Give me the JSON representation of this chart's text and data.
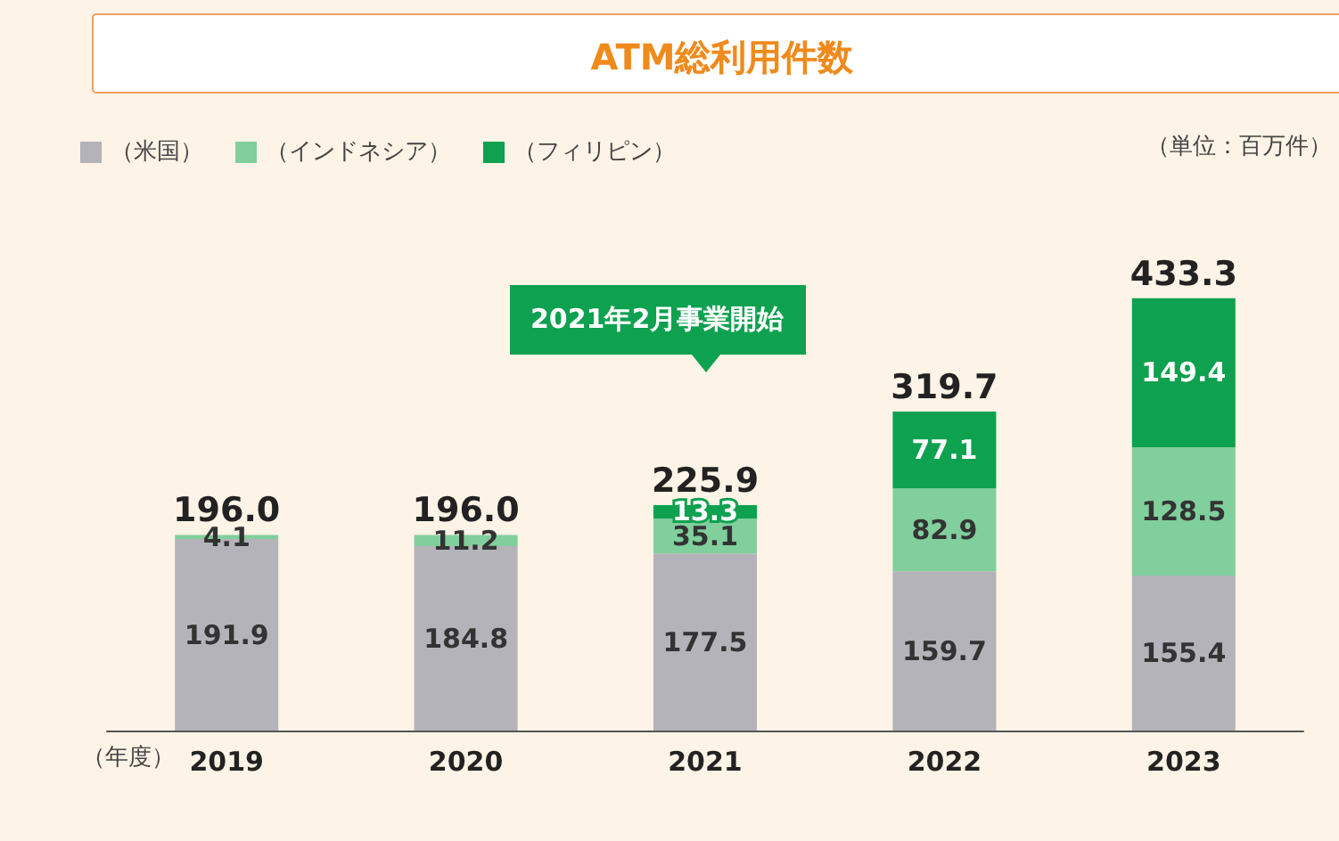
{
  "chart_data": {
    "type": "bar",
    "title": "ATM総利用件数",
    "xlabel": "（年度）",
    "categories": [
      "2019",
      "2020",
      "2021",
      "2022",
      "2023"
    ],
    "stacked": true,
    "data_labels": true,
    "legend": "top left",
    "series": [
      {
        "name": "（米国）",
        "color": "#b4b3ba",
        "values": [
          191.9,
          184.8,
          177.5,
          159.7,
          155.4
        ]
      },
      {
        "name": "（インドネシア）",
        "color": "#80cf9c",
        "values": [
          4.1,
          11.2,
          35.1,
          82.9,
          128.5
        ]
      },
      {
        "name": "（フィリピン）",
        "color": "#0ea14f",
        "values": [
          null,
          null,
          13.3,
          77.1,
          149.4
        ]
      }
    ],
    "totals": [
      "196.0",
      "196.0",
      "225.9",
      "319.7",
      "433.3"
    ],
    "annotations": [
      "（単位：百万件）",
      "2021年2月事業開始"
    ]
  }
}
